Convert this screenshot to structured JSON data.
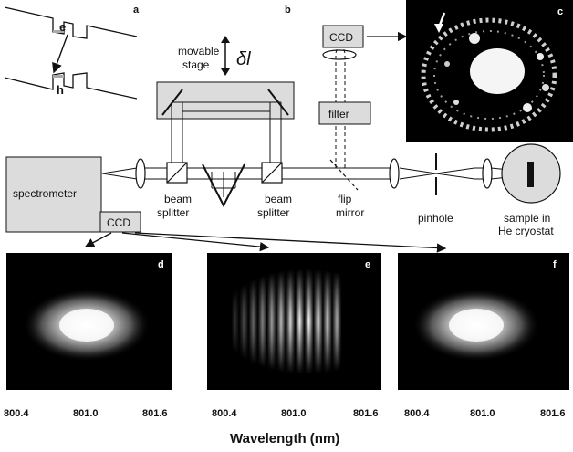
{
  "panel_labels": {
    "a": "a",
    "b": "b",
    "c": "c",
    "d": "d",
    "e": "e",
    "f": "f"
  },
  "band_diagram": {
    "electron": "e",
    "hole": "h"
  },
  "setup": {
    "movable_stage_line1": "movable",
    "movable_stage_line2": "stage",
    "delta_l": "δl",
    "ccd_top": "CCD",
    "filter": "filter",
    "spectrometer": "spectrometer",
    "ccd_bottom": "CCD",
    "beam_splitter_left_1": "beam",
    "beam_splitter_left_2": "splitter",
    "beam_splitter_right_1": "beam",
    "beam_splitter_right_2": "splitter",
    "flip_mirror_1": "flip",
    "flip_mirror_2": "mirror",
    "pinhole": "pinhole",
    "sample_1": "sample in",
    "sample_2": "He cryostat"
  },
  "spectra": {
    "tick_labels": [
      "800.4",
      "801.0",
      "801.6"
    ],
    "x_axis_label": "Wavelength (nm)"
  },
  "colors": {
    "stage_fill": "#dcdcdc",
    "box_fill": "#dcdcdc",
    "image_bg": "#000000"
  }
}
